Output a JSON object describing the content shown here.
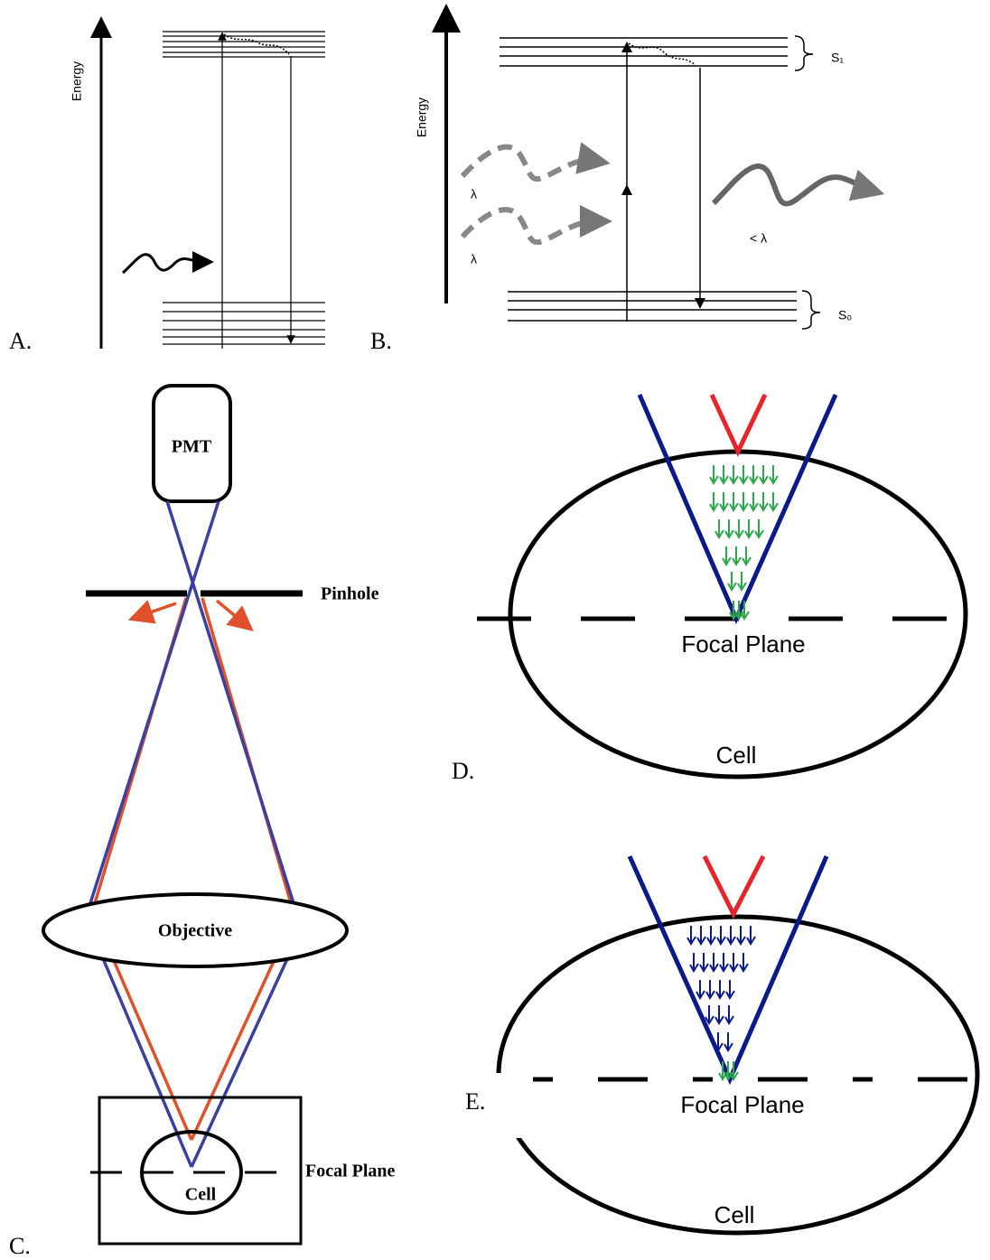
{
  "panel_a": {
    "label": "A.",
    "axis_label": "Energy"
  },
  "panel_b": {
    "label": "B.",
    "axis_label": "Energy",
    "excitation_labels": [
      "λ",
      "λ"
    ],
    "emission_label": "< λ",
    "upper_state": "S₁",
    "lower_state": "S₀"
  },
  "panel_c": {
    "label": "C.",
    "detector": "PMT",
    "aperture": "Pinhole",
    "lens": "Objective",
    "sample": "Cell",
    "plane": "Focal Plane"
  },
  "panel_d": {
    "label": "D.",
    "plane": "Focal Plane",
    "sample": "Cell"
  },
  "panel_e": {
    "label": "E.",
    "plane": "Focal Plane",
    "sample": "Cell"
  }
}
